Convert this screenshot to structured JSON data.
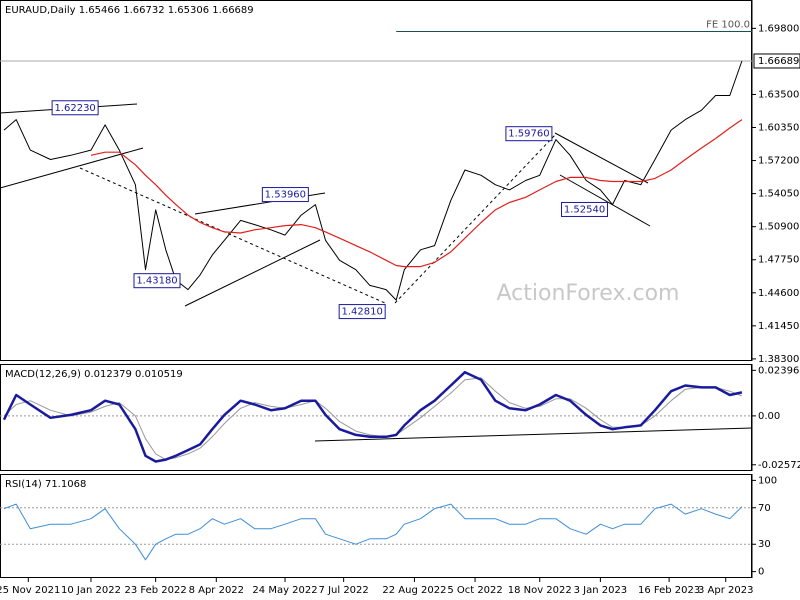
{
  "chart_data": [
    {
      "type": "line",
      "title": "EURAUD,Daily  1.65466 1.66732 1.65306 1.66689",
      "watermark": "ActionForex.com",
      "x": [
        2,
        8,
        15,
        25,
        35,
        45,
        52,
        59,
        67,
        72,
        77,
        82,
        87,
        93,
        99,
        105,
        111,
        119,
        126,
        134,
        141,
        149,
        156,
        161,
        168,
        176,
        183,
        191,
        196,
        200,
        208,
        215,
        223,
        230,
        238,
        245,
        252,
        260,
        267,
        275,
        282,
        290,
        297,
        303,
        309,
        317,
        324,
        332,
        339,
        347,
        354,
        361,
        367
      ],
      "xlim": [
        0,
        372
      ],
      "xticks": [
        {
          "value": 14,
          "label": "25 Nov 2021"
        },
        {
          "value": 45,
          "label": "10 Jan 2022"
        },
        {
          "value": 77,
          "label": "23 Feb 2022"
        },
        {
          "value": 107,
          "label": "8 Apr 2022"
        },
        {
          "value": 141,
          "label": "24 May 2022"
        },
        {
          "value": 170,
          "label": "7 Jul 2022"
        },
        {
          "value": 205,
          "label": "22 Aug 2022"
        },
        {
          "value": 235,
          "label": "5 Oct 2022"
        },
        {
          "value": 267,
          "label": "18 Nov 2022"
        },
        {
          "value": 297,
          "label": "3 Jan 2023"
        },
        {
          "value": 331,
          "label": "16 Feb 2023"
        },
        {
          "value": 359,
          "label": "3 Apr 2023"
        }
      ],
      "ylim": [
        1.381,
        1.725
      ],
      "yticks": [
        {
          "value": 1.698,
          "label": "1.69800"
        },
        {
          "value": 1.635,
          "label": "1.63500"
        },
        {
          "value": 1.6035,
          "label": "1.60350"
        },
        {
          "value": 1.572,
          "label": "1.57200"
        },
        {
          "value": 1.5405,
          "label": "1.54050"
        },
        {
          "value": 1.509,
          "label": "1.50900"
        },
        {
          "value": 1.4775,
          "label": "1.47750"
        },
        {
          "value": 1.446,
          "label": "1.44600"
        },
        {
          "value": 1.4145,
          "label": "1.41450"
        },
        {
          "value": 1.383,
          "label": "1.38300"
        }
      ],
      "last_price": {
        "value": 1.66689,
        "label": "1.66689"
      },
      "fe": {
        "label": "FE 100.0",
        "value": 1.695,
        "x_start": 196
      },
      "annotations": [
        {
          "text": "1.62230",
          "value": 1.6223,
          "x": 52
        },
        {
          "text": "1.53960",
          "value": 1.5396,
          "x": 156
        },
        {
          "text": "1.43180",
          "value": 1.4318,
          "x": 93
        },
        {
          "text": "1.42810",
          "value": 1.4281,
          "x": 194
        },
        {
          "text": "1.59760",
          "value": 1.5976,
          "x": 275
        },
        {
          "text": "1.52540",
          "value": 1.5254,
          "x": 303
        }
      ],
      "series": [
        {
          "color": "#000000",
          "values": [
            1.601,
            1.611,
            1.582,
            1.573,
            1.577,
            1.582,
            1.606,
            1.582,
            1.549,
            1.468,
            1.525,
            1.487,
            1.458,
            1.449,
            1.463,
            1.482,
            1.496,
            1.515,
            1.511,
            1.506,
            1.501,
            1.52,
            1.53,
            1.496,
            1.477,
            1.468,
            1.453,
            1.449,
            1.439,
            1.468,
            1.487,
            1.491,
            1.534,
            1.563,
            1.558,
            1.549,
            1.544,
            1.553,
            1.558,
            1.592,
            1.577,
            1.553,
            1.544,
            1.53,
            1.553,
            1.549,
            1.573,
            1.601,
            1.611,
            1.62,
            1.634,
            1.634,
            1.66689
          ]
        },
        {
          "color": "#e0201b",
          "values": [
            null,
            null,
            null,
            null,
            null,
            1.577,
            1.58,
            1.58,
            1.568,
            1.558,
            1.549,
            1.539,
            1.53,
            1.52,
            1.513,
            1.508,
            1.504,
            1.503,
            1.506,
            1.508,
            1.51,
            1.511,
            1.508,
            1.504,
            1.498,
            1.491,
            1.485,
            1.477,
            1.472,
            1.471,
            1.471,
            1.475,
            1.485,
            1.498,
            1.513,
            1.525,
            1.532,
            1.537,
            1.544,
            1.552,
            1.556,
            1.556,
            1.553,
            1.552,
            1.552,
            1.552,
            1.555,
            1.563,
            1.573,
            1.584,
            1.593,
            1.603,
            1.611
          ]
        }
      ]
    },
    {
      "type": "line",
      "title": "MACD(12,26,9) 0.012379 0.010519",
      "ylim": [
        -0.029,
        0.0273
      ],
      "yticks": [
        0.023963,
        {
          "value": 0,
          "label": "0.00"
        },
        -0.025726
      ],
      "levels": [
        0
      ],
      "series": [
        {
          "color": "#999999",
          "values": [
            0.0,
            0.006,
            0.008,
            0.003,
            0.0,
            0.002,
            0.005,
            0.007,
            0.0,
            -0.012,
            -0.02,
            -0.023,
            -0.022,
            -0.02,
            -0.017,
            -0.011,
            -0.004,
            0.004,
            0.007,
            0.005,
            0.004,
            0.006,
            0.008,
            0.004,
            -0.003,
            -0.008,
            -0.01,
            -0.011,
            -0.01,
            -0.007,
            -0.001,
            0.005,
            0.012,
            0.019,
            0.02,
            0.013,
            0.007,
            0.004,
            0.005,
            0.009,
            0.009,
            0.004,
            -0.002,
            -0.006,
            -0.006,
            -0.005,
            0.0,
            0.008,
            0.014,
            0.015,
            0.015,
            0.013,
            0.010519
          ]
        },
        {
          "color": "#1a1a9c",
          "values": [
            -0.002,
            0.011,
            0.006,
            -0.001,
            0.0005,
            0.003,
            0.008,
            0.006,
            -0.007,
            -0.021,
            -0.024,
            -0.023,
            -0.021,
            -0.018,
            -0.015,
            -0.007,
            0.0005,
            0.008,
            0.006,
            0.003,
            0.004,
            0.008,
            0.008,
            0.0005,
            -0.007,
            -0.01,
            -0.011,
            -0.011,
            -0.01,
            -0.005,
            0.003,
            0.008,
            0.016,
            0.023,
            0.019,
            0.008,
            0.004,
            0.003,
            0.006,
            0.011,
            0.008,
            0.0005,
            -0.005,
            -0.007,
            -0.006,
            -0.005,
            0.003,
            0.013,
            0.016,
            0.015,
            0.015,
            0.011,
            0.012379
          ]
        }
      ]
    },
    {
      "type": "line",
      "title": "RSI(14) 71.1068",
      "ylim": [
        -7,
        107
      ],
      "yticks": [
        100,
        70,
        30,
        0
      ],
      "levels": [
        70,
        30
      ],
      "series": [
        {
          "color": "#3f8ed8",
          "values": [
            69,
            74,
            47,
            52,
            52,
            58,
            69,
            47,
            30,
            13,
            30,
            36,
            41,
            41,
            47,
            58,
            52,
            58,
            47,
            47,
            52,
            58,
            58,
            41,
            36,
            30,
            36,
            36,
            41,
            52,
            58,
            69,
            74,
            58,
            58,
            58,
            52,
            52,
            58,
            58,
            47,
            41,
            52,
            47,
            52,
            52,
            69,
            74,
            63,
            69,
            63,
            58,
            71.1068
          ]
        }
      ]
    }
  ]
}
